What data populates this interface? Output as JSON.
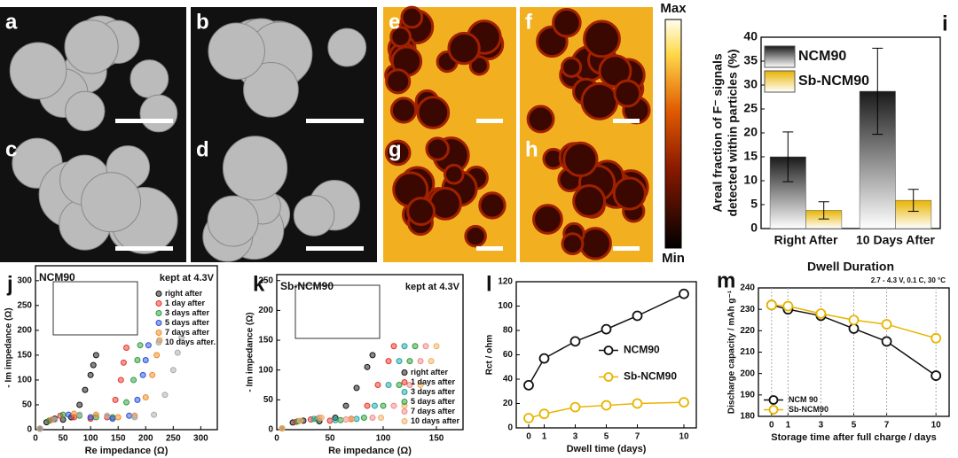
{
  "image_panels": {
    "labels": [
      "a",
      "b",
      "c",
      "d",
      "e",
      "f",
      "g",
      "h"
    ],
    "colorbar_max": "Max",
    "colorbar_min": "Min"
  },
  "chart_data": [
    {
      "type": "bar",
      "panel_label": "i",
      "categories": [
        "Right After",
        "10 Days After"
      ],
      "series": [
        {
          "name": "NCM90",
          "color": "#1a1a1a",
          "values": [
            15,
            28.7
          ],
          "errors": [
            5.2,
            9
          ]
        },
        {
          "name": "Sb-NCM90",
          "color": "#e8b400",
          "values": [
            3.8,
            5.9
          ],
          "errors": [
            1.8,
            2.3
          ]
        }
      ],
      "ylim": [
        0,
        40
      ],
      "yticks": [
        0,
        5,
        10,
        15,
        20,
        25,
        30,
        35,
        40
      ],
      "ylabel": [
        "Areal fraction of F⁻ signals",
        "detected within particles (%)"
      ],
      "xlabel": "Dwell Duration",
      "legend": "upper left"
    },
    {
      "type": "scatter",
      "panel_label": "j",
      "title": "NCM90",
      "subtitle": "kept at 4.3V",
      "xlabel": "Re impedance (Ω)",
      "ylabel": "- Im impedance (Ω)",
      "xlim": [
        0,
        330
      ],
      "xticks": [
        0,
        50,
        100,
        150,
        200,
        250,
        300
      ],
      "ylim": [
        0,
        330
      ],
      "yticks": [
        0,
        50,
        100,
        150,
        200,
        250,
        300
      ],
      "legend": "upper right",
      "series": [
        {
          "name": "right after",
          "color": "#111111",
          "x": [
            8,
            20,
            35,
            50,
            65,
            80,
            90,
            100,
            105,
            110
          ],
          "values": [
            2,
            15,
            22,
            20,
            25,
            50,
            80,
            110,
            130,
            150
          ]
        },
        {
          "name": "1 day after",
          "color": "#e8332a",
          "x": [
            8,
            25,
            45,
            70,
            100,
            130,
            145,
            155,
            160,
            165
          ],
          "values": [
            2,
            18,
            28,
            25,
            22,
            25,
            60,
            100,
            135,
            165
          ]
        },
        {
          "name": "3 days after",
          "color": "#2a9d3a",
          "x": [
            8,
            25,
            50,
            80,
            110,
            140,
            165,
            178,
            185,
            190
          ],
          "values": [
            2,
            18,
            30,
            28,
            25,
            25,
            55,
            100,
            140,
            170
          ]
        },
        {
          "name": "5 days after",
          "color": "#2a4fd8",
          "x": [
            8,
            30,
            60,
            100,
            140,
            170,
            185,
            195,
            200,
            205
          ],
          "values": [
            2,
            20,
            30,
            25,
            22,
            28,
            60,
            110,
            140,
            170
          ]
        },
        {
          "name": "7 days after",
          "color": "#f08a24",
          "x": [
            8,
            30,
            70,
            110,
            150,
            180,
            200,
            212,
            220,
            225
          ],
          "values": [
            2,
            20,
            32,
            30,
            25,
            28,
            65,
            110,
            150,
            180
          ]
        },
        {
          "name": "10 days after.",
          "color": "#aaaaaa",
          "x": [
            8,
            35,
            80,
            130,
            180,
            215,
            235,
            250,
            258,
            265
          ],
          "values": [
            2,
            20,
            30,
            28,
            25,
            30,
            70,
            120,
            155,
            185
          ]
        }
      ]
    },
    {
      "type": "scatter",
      "panel_label": "k",
      "title": "Sb-NCM90",
      "subtitle": "kept at 4.3V",
      "xlabel": "Re impedance (Ω)",
      "ylabel": "- Im impedance (Ω)",
      "xlim": [
        0,
        175
      ],
      "xticks": [
        0,
        50,
        100,
        150
      ],
      "ylim": [
        0,
        260
      ],
      "yticks": [
        0,
        50,
        100,
        150,
        200,
        250
      ],
      "legend": "lower right",
      "series": [
        {
          "name": "right after",
          "color": "#111111",
          "x": [
            5,
            15,
            25,
            40,
            55,
            65,
            75,
            85,
            90
          ],
          "values": [
            2,
            12,
            15,
            14,
            20,
            40,
            70,
            105,
            125
          ]
        },
        {
          "name": "1 days after",
          "color": "#e8332a",
          "x": [
            5,
            18,
            32,
            50,
            70,
            85,
            95,
            105,
            110
          ],
          "values": [
            2,
            13,
            17,
            15,
            18,
            40,
            75,
            115,
            140
          ]
        },
        {
          "name": "3 days after",
          "color": "#1fa3a3",
          "x": [
            5,
            20,
            35,
            55,
            75,
            92,
            105,
            115,
            120
          ],
          "values": [
            2,
            14,
            18,
            16,
            18,
            40,
            75,
            115,
            140
          ]
        },
        {
          "name": "5 days after",
          "color": "#2a9d3a",
          "x": [
            5,
            20,
            38,
            60,
            82,
            100,
            115,
            125,
            130
          ],
          "values": [
            2,
            14,
            18,
            16,
            20,
            40,
            75,
            115,
            140
          ]
        },
        {
          "name": "7 days after",
          "color": "#f08a8a",
          "x": [
            5,
            22,
            40,
            65,
            90,
            110,
            125,
            135,
            140
          ],
          "values": [
            2,
            15,
            20,
            17,
            20,
            40,
            75,
            115,
            140
          ]
        },
        {
          "name": "10 days after",
          "color": "#f0b060",
          "x": [
            5,
            22,
            42,
            70,
            98,
            120,
            135,
            145,
            150
          ],
          "values": [
            2,
            15,
            20,
            17,
            20,
            40,
            75,
            115,
            140
          ]
        }
      ]
    },
    {
      "type": "line",
      "panel_label": "l",
      "xlabel": "Dwell time (days)",
      "ylabel": "Rct / ohm",
      "x": [
        0,
        1,
        3,
        5,
        7,
        10
      ],
      "xlim": [
        -0.8,
        10.8
      ],
      "xticks": [
        0,
        1,
        3,
        5,
        7,
        10
      ],
      "ylim": [
        0,
        120
      ],
      "yticks": [
        0,
        20,
        40,
        60,
        80,
        100,
        120
      ],
      "legend": "center right",
      "series": [
        {
          "name": "NCM90",
          "color": "#111111",
          "values": [
            35,
            57,
            71,
            81,
            92,
            110
          ]
        },
        {
          "name": "Sb-NCM90",
          "color": "#e8b400",
          "values": [
            8,
            11.5,
            17,
            18.5,
            20,
            21
          ]
        }
      ]
    },
    {
      "type": "line",
      "panel_label": "m",
      "xlabel": "Storage time after full charge / days",
      "ylabel": "Discharge capacity / mAh g⁻¹",
      "annotation": "2.7 - 4.3 V,  0.1 C, 30 °C",
      "x": [
        0,
        1,
        3,
        5,
        7,
        10
      ],
      "xlim": [
        -0.8,
        10.8
      ],
      "xticks": [
        0,
        1,
        3,
        5,
        7,
        10
      ],
      "ylim": [
        180,
        240
      ],
      "yticks": [
        180,
        190,
        200,
        210,
        220,
        230,
        240
      ],
      "grid": "x",
      "legend": "lower left",
      "series": [
        {
          "name": "NCM 90",
          "color": "#111111",
          "values": [
            232,
            230,
            227,
            221,
            215,
            199
          ]
        },
        {
          "name": "Sb-NCM90",
          "color": "#e8b400",
          "values": [
            232,
            231.5,
            228,
            225,
            223,
            216.5
          ]
        }
      ]
    }
  ]
}
